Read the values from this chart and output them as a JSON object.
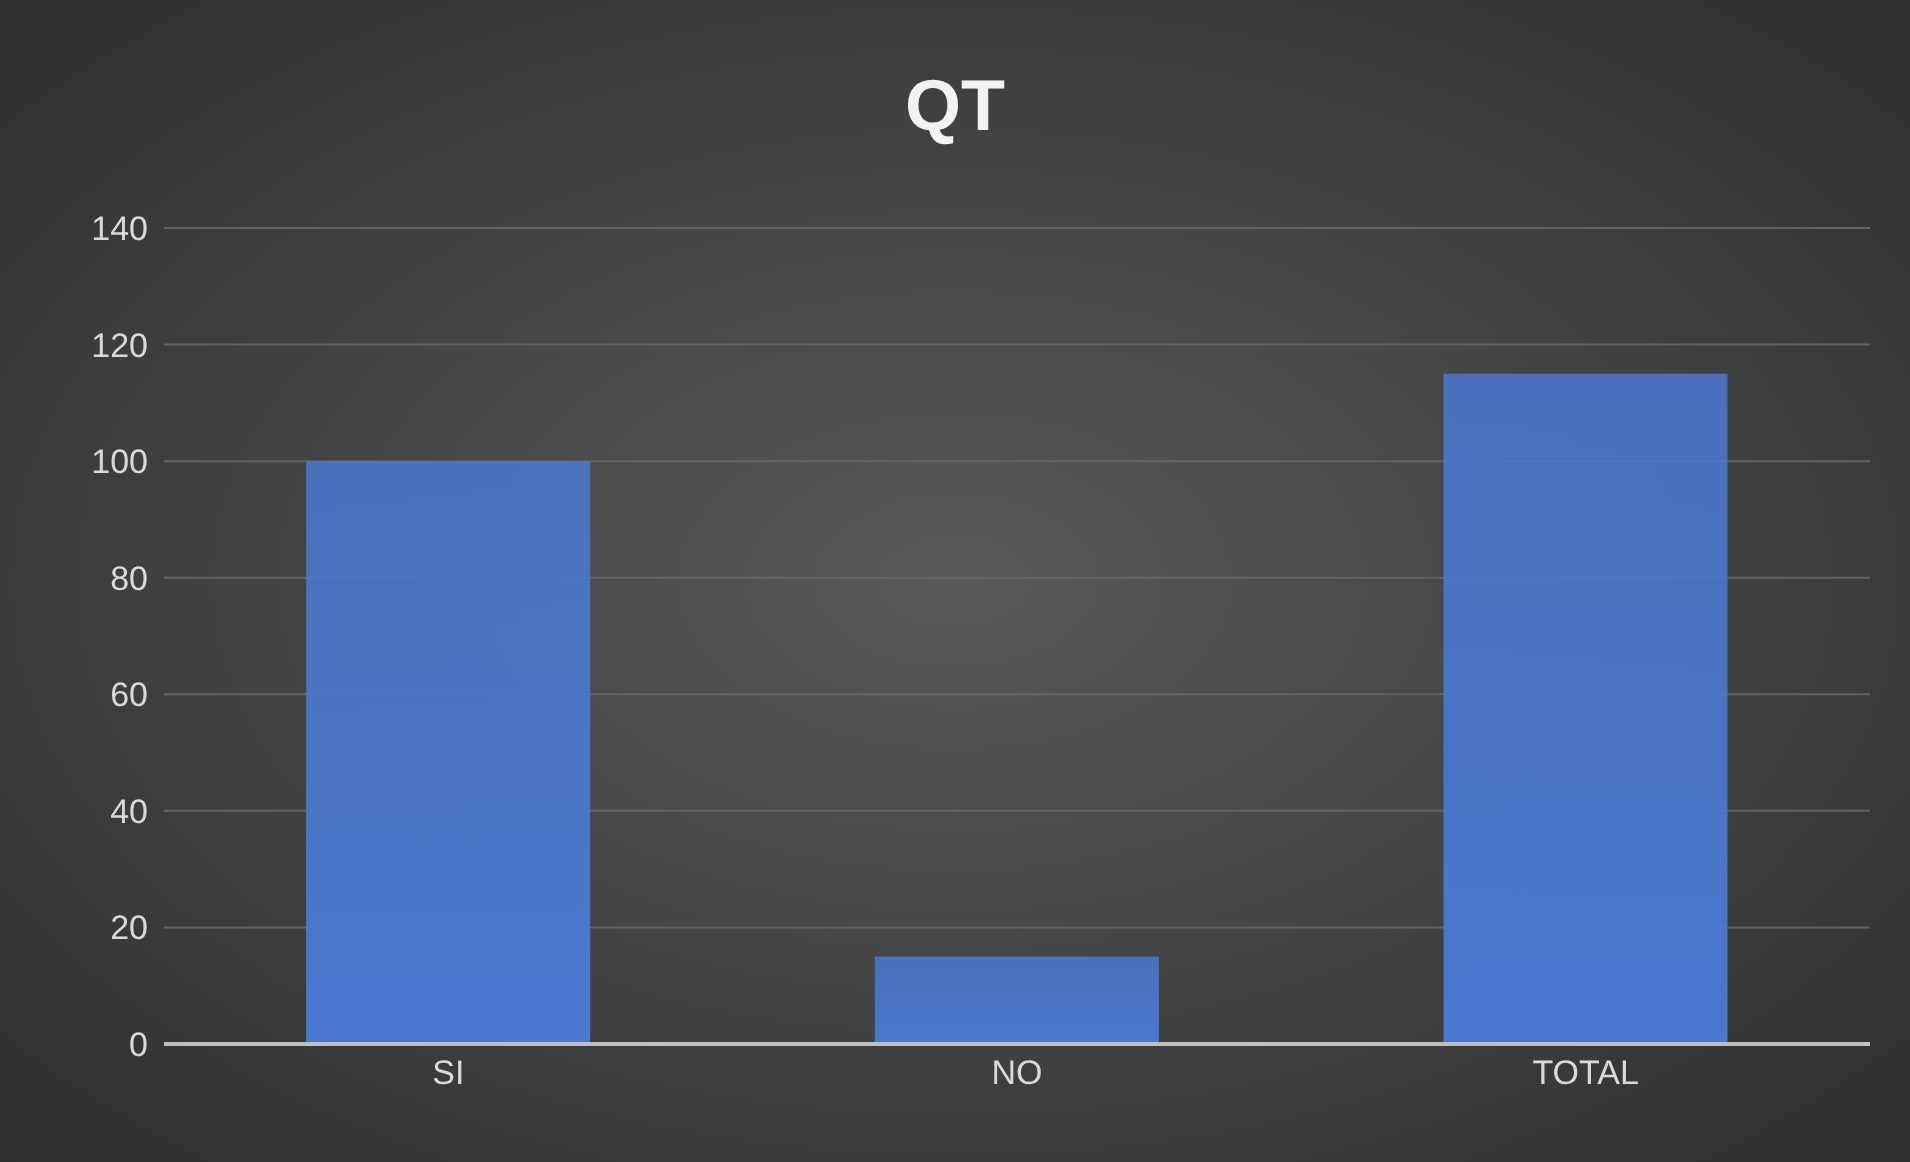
{
  "chart_data": {
    "type": "bar",
    "title": "QT",
    "categories": [
      "SI",
      "NO",
      "TOTAL"
    ],
    "values": [
      100,
      15,
      115
    ],
    "color": "#4a78cf",
    "ylim": [
      0,
      140
    ],
    "yticks": [
      0,
      20,
      40,
      60,
      80,
      100,
      120,
      140
    ],
    "grid": "y"
  }
}
